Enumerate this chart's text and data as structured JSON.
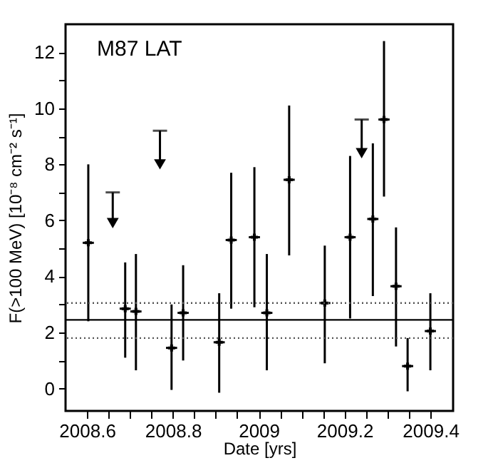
{
  "chart_data": {
    "type": "scatter",
    "xlabel": "Date [yrs]",
    "ylabel": "F(>100 MeV) [10⁻⁸ cm⁻² s⁻¹]",
    "annotations": [
      "M87 LAT"
    ],
    "series": [
      {
        "marker": "cross",
        "color": "#000000",
        "x": [
          2008.603,
          2008.689,
          2008.714,
          2008.797,
          2008.824,
          2008.908,
          2008.936,
          2008.99,
          2009.019,
          2009.071,
          2009.154,
          2009.213,
          2009.266,
          2009.292,
          2009.32,
          2009.347,
          2009.4
        ],
        "values": [
          5.2,
          2.85,
          2.75,
          1.45,
          2.7,
          1.65,
          5.3,
          5.4,
          2.7,
          7.45,
          3.05,
          5.4,
          6.05,
          9.6,
          3.65,
          0.8,
          2.05
        ],
        "errors": [
          [
            2.4,
            8.0
          ],
          [
            1.1,
            4.5
          ],
          [
            0.65,
            4.8
          ],
          [
            -0.05,
            3.0
          ],
          [
            1.0,
            4.4
          ],
          [
            -0.15,
            3.4
          ],
          [
            2.85,
            7.7
          ],
          [
            2.9,
            7.9
          ],
          [
            0.65,
            4.8
          ],
          [
            4.75,
            10.1
          ],
          [
            0.9,
            5.1
          ],
          [
            2.5,
            8.3
          ],
          [
            3.3,
            8.75
          ],
          [
            6.85,
            12.4
          ],
          [
            1.5,
            5.75
          ],
          [
            -0.1,
            1.8
          ],
          [
            0.65,
            3.4
          ]
        ],
        "xerrors": [
          0.013,
          0.013,
          0.013,
          0.013,
          0.013,
          0.013,
          0.013,
          0.013,
          0.013,
          0.013,
          0.013,
          0.013,
          0.013,
          0.013,
          0.013,
          0.013,
          0.013
        ]
      },
      {
        "marker": "triangle",
        "color": "#000000",
        "x": [
          2008.66,
          2008.77,
          2009.24
        ],
        "values": [
          5.9,
          8.0,
          8.4
        ],
        "errors": [
          [
            5.9,
            7.0
          ],
          [
            8.0,
            9.2
          ],
          [
            8.4,
            9.6
          ]
        ]
      }
    ],
    "ref_lines": [
      {
        "axis": "y",
        "value": 2.45,
        "color": "#000000",
        "line_style": "solid"
      },
      {
        "axis": "y",
        "value": 3.05,
        "color": "#555555",
        "line_style": "dotted"
      },
      {
        "axis": "y",
        "value": 1.8,
        "color": "#555555",
        "line_style": "dotted"
      }
    ],
    "xlim": [
      2008.55,
      2009.453
    ],
    "ylim": [
      -0.8,
      13.0
    ],
    "xticks": [
      2008.6,
      {
        "value": 2008.65,
        "label": null
      },
      {
        "value": 2008.7,
        "label": null
      },
      {
        "value": 2008.75,
        "label": null
      },
      2008.8,
      {
        "value": 2008.85,
        "label": null
      },
      {
        "value": 2008.9,
        "label": null
      },
      {
        "value": 2008.95,
        "label": null
      },
      {
        "value": 2009.0,
        "label": "2009"
      },
      {
        "value": 2009.05,
        "label": null
      },
      {
        "value": 2009.1,
        "label": null
      },
      {
        "value": 2009.15,
        "label": null
      },
      2009.2,
      {
        "value": 2009.25,
        "label": null
      },
      {
        "value": 2009.3,
        "label": null
      },
      {
        "value": 2009.35,
        "label": null
      },
      2009.4
    ],
    "yticks": [
      0,
      {
        "value": 1,
        "label": null
      },
      2,
      {
        "value": 3,
        "label": null
      },
      4,
      {
        "value": 5,
        "label": null
      },
      6,
      {
        "value": 7,
        "label": null
      },
      8,
      {
        "value": 9,
        "label": null
      },
      10,
      {
        "value": 11,
        "label": null
      },
      12
    ],
    "grid": false
  }
}
